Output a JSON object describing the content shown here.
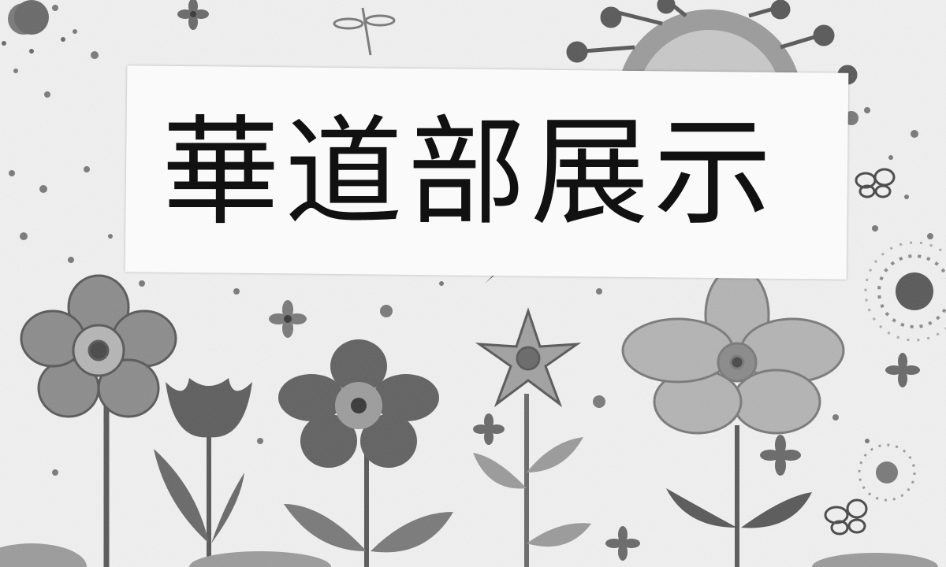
{
  "poster": {
    "title": "華道部展示"
  }
}
